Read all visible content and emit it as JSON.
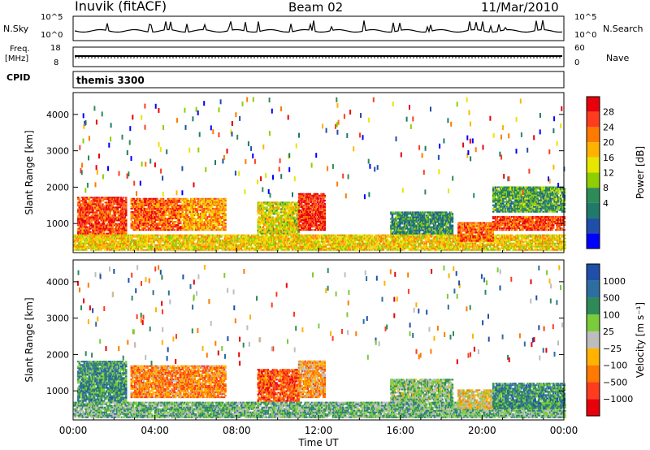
{
  "header": {
    "station": "Inuvik (fitACF)",
    "beam": "Beam 02",
    "date": "11/Mar/2010"
  },
  "top_panels": {
    "noise": {
      "left_label": "N.Sky",
      "left_ticks": [
        "10^5",
        "10^0"
      ],
      "right_ticks": [
        "10^5",
        "10^0"
      ],
      "right_label": "N.Search"
    },
    "freq": {
      "left_label_1": "Freq.",
      "left_label_2": "[MHz]",
      "left_ticks": [
        "18",
        "8"
      ],
      "right_ticks": [
        "60",
        "0"
      ],
      "right_label": "Nave"
    },
    "cpid": {
      "left_label": "CPID",
      "value": "themis 3300"
    }
  },
  "chart_data": [
    {
      "type": "heatmap",
      "title": "",
      "xlabel": "Time UT",
      "ylabel": "Slant Range [km]",
      "x_ticks": [
        "00:00",
        "04:00",
        "08:00",
        "12:00",
        "16:00",
        "20:00",
        "00:00"
      ],
      "xlim_hours": [
        0,
        24
      ],
      "y_ticks": [
        1000,
        2000,
        3000,
        4000
      ],
      "ylim": [
        200,
        4600
      ],
      "colorbar": {
        "label": "Power [dB]",
        "ticks": [
          "28",
          "24",
          "20",
          "16",
          "12",
          "8",
          "4"
        ],
        "colors": [
          "#e8000b",
          "#ff3c1e",
          "#ff7a00",
          "#ffb300",
          "#e6e600",
          "#8fce00",
          "#2e8b57",
          "#1f7a6a",
          "#1f4fa8",
          "#0000ff"
        ]
      },
      "regions": [
        {
          "t0": 0.2,
          "t1": 2.6,
          "r0": 700,
          "r1": 1700,
          "level": 0.85
        },
        {
          "t0": 2.8,
          "t1": 5.2,
          "r0": 800,
          "r1": 1700,
          "level": 0.8
        },
        {
          "t0": 5.3,
          "t1": 7.4,
          "r0": 800,
          "r1": 1700,
          "level": 0.7
        },
        {
          "t0": 9.0,
          "t1": 11.0,
          "r0": 700,
          "r1": 1600,
          "level": 0.55
        },
        {
          "t0": 11.0,
          "t1": 12.3,
          "r0": 800,
          "r1": 1800,
          "level": 0.9
        },
        {
          "t0": 0.0,
          "t1": 24.0,
          "r0": 250,
          "r1": 700,
          "level": 0.6
        },
        {
          "t0": 15.5,
          "t1": 18.5,
          "r0": 700,
          "r1": 1300,
          "level": 0.3
        },
        {
          "t0": 18.8,
          "t1": 20.5,
          "r0": 500,
          "r1": 1000,
          "level": 0.8
        },
        {
          "t0": 20.5,
          "t1": 24.0,
          "r0": 800,
          "r1": 1200,
          "level": 0.85
        },
        {
          "t0": 20.5,
          "t1": 24.0,
          "r0": 1300,
          "r1": 2000,
          "level": 0.35
        }
      ]
    },
    {
      "type": "heatmap",
      "title": "",
      "xlabel": "Time UT",
      "ylabel": "Slant Range [km]",
      "x_ticks": [
        "00:00",
        "04:00",
        "08:00",
        "12:00",
        "16:00",
        "20:00",
        "00:00"
      ],
      "xlim_hours": [
        0,
        24
      ],
      "y_ticks": [
        1000,
        2000,
        3000,
        4000
      ],
      "ylim": [
        200,
        4600
      ],
      "colorbar": {
        "label": "Velocity [m s⁻¹]",
        "ticks": [
          "1000",
          "500",
          "100",
          "25",
          "−25",
          "−100",
          "−500",
          "−1000"
        ],
        "colors": [
          "#1f4fa8",
          "#2d6ea0",
          "#2e8b57",
          "#7acc3a",
          "#bdbdbd",
          "#ffb300",
          "#ff7a00",
          "#ff3c1e",
          "#e8000b"
        ]
      },
      "regions": [
        {
          "t0": 0.2,
          "t1": 2.6,
          "r0": 700,
          "r1": 1800,
          "level": 0.75
        },
        {
          "t0": 2.8,
          "t1": 5.2,
          "r0": 800,
          "r1": 1700,
          "level": 0.3
        },
        {
          "t0": 5.3,
          "t1": 7.4,
          "r0": 800,
          "r1": 1700,
          "level": 0.3
        },
        {
          "t0": 9.0,
          "t1": 11.0,
          "r0": 700,
          "r1": 1600,
          "level": 0.2
        },
        {
          "t0": 11.0,
          "t1": 12.3,
          "r0": 800,
          "r1": 1800,
          "level": 0.35
        },
        {
          "t0": 0.0,
          "t1": 24.0,
          "r0": 250,
          "r1": 700,
          "level": 0.65
        },
        {
          "t0": 15.5,
          "t1": 18.5,
          "r0": 700,
          "r1": 1300,
          "level": 0.6
        },
        {
          "t0": 18.8,
          "t1": 20.5,
          "r0": 500,
          "r1": 1000,
          "level": 0.45
        },
        {
          "t0": 20.5,
          "t1": 24.0,
          "r0": 500,
          "r1": 1200,
          "level": 0.75
        }
      ]
    }
  ]
}
